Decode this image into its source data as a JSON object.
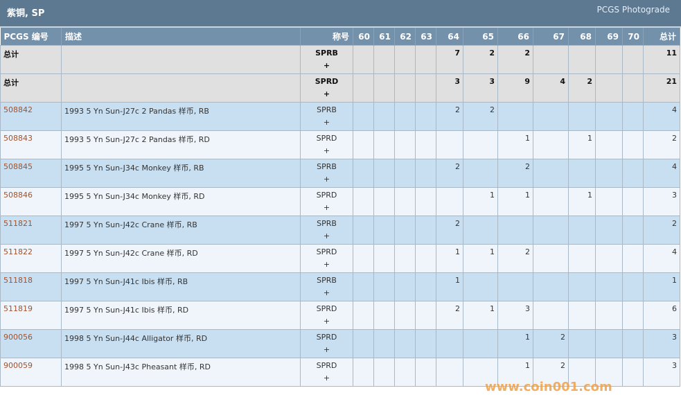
{
  "header": {
    "title": "紫铜, SP",
    "subtitle": "PCGS Photograde"
  },
  "columns": [
    "PCGS 编号",
    "描述",
    "称号",
    "60",
    "61",
    "62",
    "63",
    "64",
    "65",
    "66",
    "67",
    "68",
    "69",
    "70",
    "总计"
  ],
  "rows": [
    {
      "type": "total",
      "id": "总计",
      "desc": "",
      "des": "SPRB",
      "plus": "+",
      "g": [
        "",
        "",
        "",
        "",
        "7",
        "2",
        "2",
        "",
        "",
        "",
        ""
      ],
      "total": "11"
    },
    {
      "type": "total",
      "id": "总计",
      "desc": "",
      "des": "SPRD",
      "plus": "+",
      "g": [
        "",
        "",
        "",
        "",
        "3",
        "3",
        "9",
        "4",
        "2",
        "",
        ""
      ],
      "total": "21"
    },
    {
      "type": "blue",
      "id": "508842",
      "desc": "1993 5 Yn Sun-J27c 2 Pandas 样币, RB",
      "des": "SPRB",
      "plus": "+",
      "g": [
        "",
        "",
        "",
        "",
        "2",
        "2",
        "",
        "",
        "",
        "",
        ""
      ],
      "total": "4"
    },
    {
      "type": "white",
      "id": "508843",
      "desc": "1993 5 Yn Sun-J27c 2 Pandas 样币, RD",
      "des": "SPRD",
      "plus": "+",
      "g": [
        "",
        "",
        "",
        "",
        "",
        "",
        "1",
        "",
        "1",
        "",
        ""
      ],
      "total": "2"
    },
    {
      "type": "blue",
      "id": "508845",
      "desc": "1995 5 Yn Sun-J34c Monkey 样币, RB",
      "des": "SPRB",
      "plus": "+",
      "g": [
        "",
        "",
        "",
        "",
        "2",
        "",
        "2",
        "",
        "",
        "",
        ""
      ],
      "total": "4"
    },
    {
      "type": "white",
      "id": "508846",
      "desc": "1995 5 Yn Sun-J34c Monkey 样币, RD",
      "des": "SPRD",
      "plus": "+",
      "g": [
        "",
        "",
        "",
        "",
        "",
        "1",
        "1",
        "",
        "1",
        "",
        ""
      ],
      "total": "3"
    },
    {
      "type": "blue",
      "id": "511821",
      "desc": "1997 5 Yn Sun-J42c Crane 样币, RB",
      "des": "SPRB",
      "plus": "+",
      "g": [
        "",
        "",
        "",
        "",
        "2",
        "",
        "",
        "",
        "",
        "",
        ""
      ],
      "total": "2"
    },
    {
      "type": "white",
      "id": "511822",
      "desc": "1997 5 Yn Sun-J42c Crane 样币, RD",
      "des": "SPRD",
      "plus": "+",
      "g": [
        "",
        "",
        "",
        "",
        "1",
        "1",
        "2",
        "",
        "",
        "",
        ""
      ],
      "total": "4"
    },
    {
      "type": "blue",
      "id": "511818",
      "desc": "1997 5 Yn Sun-J41c Ibis 样币, RB",
      "des": "SPRB",
      "plus": "+",
      "g": [
        "",
        "",
        "",
        "",
        "1",
        "",
        "",
        "",
        "",
        "",
        ""
      ],
      "total": "1"
    },
    {
      "type": "white",
      "id": "511819",
      "desc": "1997 5 Yn Sun-J41c Ibis 样币, RD",
      "des": "SPRD",
      "plus": "+",
      "g": [
        "",
        "",
        "",
        "",
        "2",
        "1",
        "3",
        "",
        "",
        "",
        ""
      ],
      "total": "6"
    },
    {
      "type": "blue",
      "id": "900056",
      "desc": "1998 5 Yn Sun-J44c Alligator 样币, RD",
      "des": "SPRD",
      "plus": "+",
      "g": [
        "",
        "",
        "",
        "",
        "",
        "",
        "1",
        "2",
        "",
        "",
        ""
      ],
      "total": "3"
    },
    {
      "type": "white",
      "id": "900059",
      "desc": "1998 5 Yn Sun-J43c Pheasant 样币, RD",
      "des": "SPRD",
      "plus": "+",
      "g": [
        "",
        "",
        "",
        "",
        "",
        "",
        "1",
        "2",
        "",
        "",
        ""
      ],
      "total": "3"
    }
  ],
  "watermark": "www.coin001.com"
}
